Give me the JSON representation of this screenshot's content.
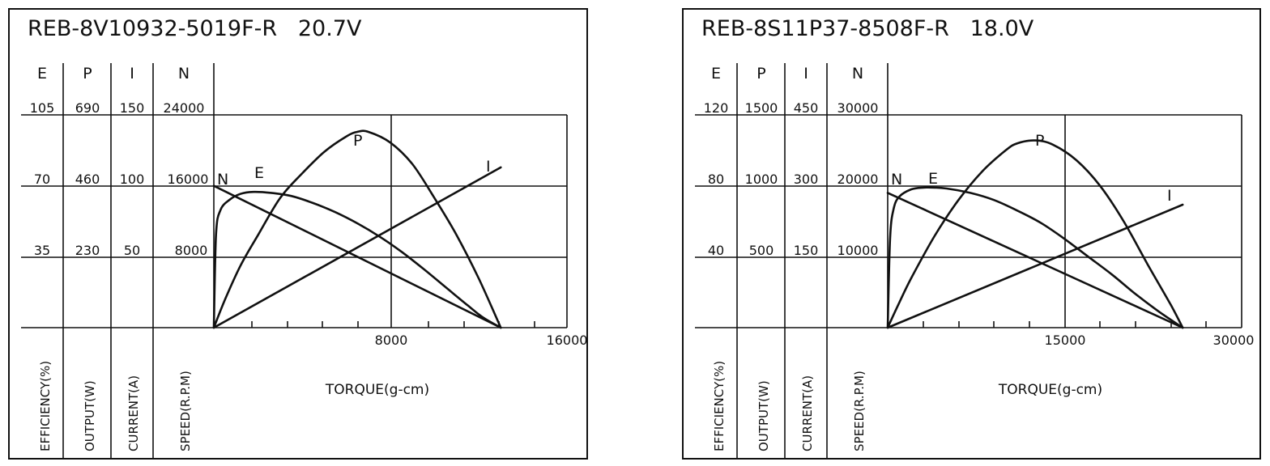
{
  "chart_data": [
    {
      "type": "line",
      "title": "REB-8V10932-5019F-R   20.7V",
      "columns": [
        {
          "key": "E",
          "ticks": [
            "105",
            "70",
            "35"
          ],
          "label": "EFFICIENCY(%)"
        },
        {
          "key": "P",
          "ticks": [
            "690",
            "460",
            "230"
          ],
          "label": "OUTPUT(W)"
        },
        {
          "key": "I",
          "ticks": [
            "150",
            "100",
            "50"
          ],
          "label": "CURRENT(A)"
        },
        {
          "key": "N",
          "ticks": [
            "24000",
            "16000",
            "8000"
          ],
          "label": "SPEED(R.P.M)"
        }
      ],
      "xlabel": "TORQUE(g-cm)",
      "xticks": [
        "8000",
        "16000"
      ],
      "xlim": [
        0,
        16000
      ],
      "grid": true,
      "series": [
        {
          "name": "N",
          "x": [
            0,
            13000
          ],
          "y": [
            16000,
            0
          ]
        },
        {
          "name": "E",
          "x": [
            0,
            100,
            300,
            700,
            1200,
            1800,
            2600,
            3500,
            4500,
            5500,
            6500,
            7500,
            8500,
            9500,
            10500,
            11500,
            12200,
            13000
          ],
          "y": [
            0,
            46,
            58,
            63,
            66,
            67,
            66.5,
            65,
            61.5,
            57,
            51.5,
            45,
            37.5,
            29,
            20,
            11,
            5,
            0
          ]
        },
        {
          "name": "P",
          "x": [
            0,
            500,
            1200,
            2000,
            3000,
            4000,
            5000,
            6000,
            6500,
            7000,
            8000,
            9000,
            10000,
            11000,
            12000,
            13000
          ],
          "y": [
            0,
            90,
            200,
            300,
            420,
            500,
            570,
            620,
            635,
            635,
            600,
            530,
            420,
            300,
            160,
            0
          ]
        },
        {
          "name": "I",
          "x": [
            0,
            13000
          ],
          "y": [
            0,
            113
          ]
        }
      ]
    },
    {
      "type": "line",
      "title": "REB-8S11P37-8508F-R   18.0V",
      "columns": [
        {
          "key": "E",
          "ticks": [
            "120",
            "80",
            "40"
          ],
          "label": "EFFICIENCY(%)"
        },
        {
          "key": "P",
          "ticks": [
            "1500",
            "1000",
            "500"
          ],
          "label": "OUTPUT(W)"
        },
        {
          "key": "I",
          "ticks": [
            "450",
            "300",
            "150"
          ],
          "label": "CURRENT(A)"
        },
        {
          "key": "N",
          "ticks": [
            "30000",
            "20000",
            "10000"
          ],
          "label": "SPEED(R.P.M)"
        }
      ],
      "xlabel": "TORQUE(g-cm)",
      "xticks": [
        "15000",
        "30000"
      ],
      "xlim": [
        0,
        30000
      ],
      "grid": true,
      "series": [
        {
          "name": "N",
          "x": [
            0,
            25000
          ],
          "y": [
            19000,
            0
          ]
        },
        {
          "name": "E",
          "x": [
            0,
            200,
            500,
            1000,
            2000,
            3000,
            4000,
            5000,
            7000,
            9000,
            11000,
            13000,
            15000,
            17000,
            19000,
            21000,
            23000,
            25000
          ],
          "y": [
            0,
            50,
            67,
            74,
            78,
            79,
            79,
            78.5,
            76,
            72,
            66,
            59,
            50,
            40,
            30,
            19,
            9,
            0
          ]
        },
        {
          "name": "P",
          "x": [
            0,
            1000,
            2000,
            4000,
            6000,
            8000,
            10000,
            11000,
            12500,
            14000,
            16000,
            18000,
            20000,
            22000,
            24000,
            25000
          ],
          "y": [
            0,
            180,
            350,
            650,
            900,
            1100,
            1250,
            1300,
            1320,
            1290,
            1180,
            1000,
            750,
            450,
            160,
            0
          ]
        },
        {
          "name": "I",
          "x": [
            0,
            25000
          ],
          "y": [
            0,
            260
          ]
        }
      ]
    }
  ]
}
